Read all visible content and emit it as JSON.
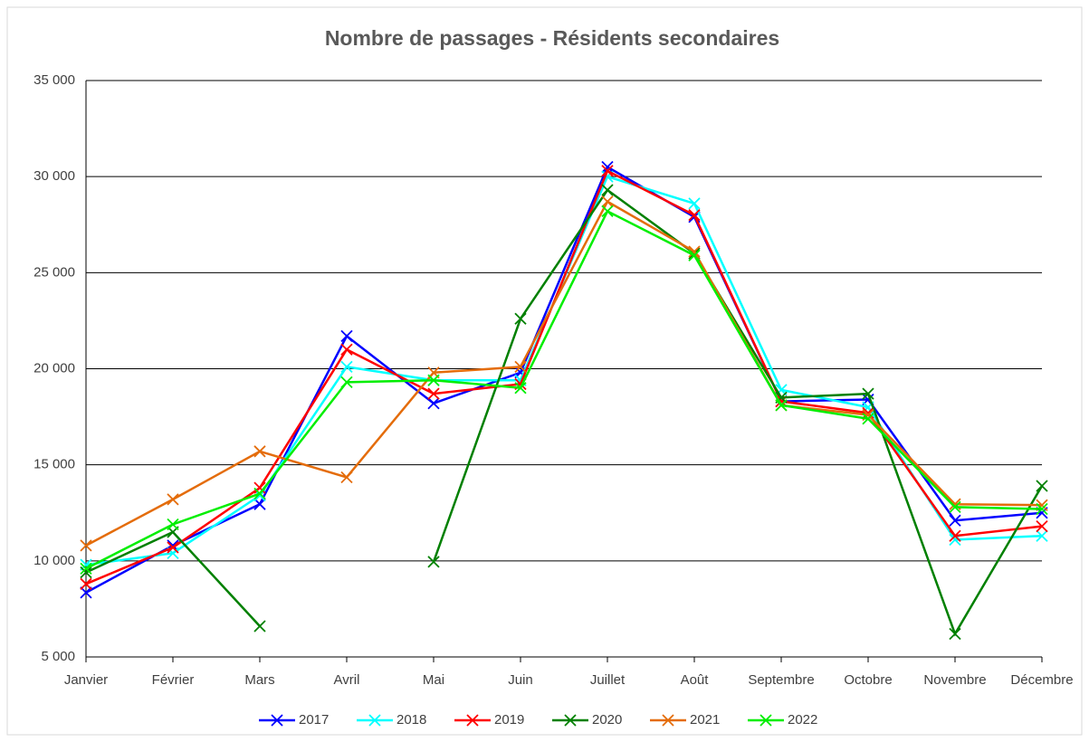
{
  "chart_data": {
    "type": "line",
    "title": "Nombre de passages  - Résidents secondaires",
    "categories": [
      "Janvier",
      "Février",
      "Mars",
      "Avril",
      "Mai",
      "Juin",
      "Juillet",
      "Août",
      "Septembre",
      "Octobre",
      "Novembre",
      "Décembre"
    ],
    "series": [
      {
        "name": "2017",
        "color": "#0000ff",
        "values": [
          8350,
          10800,
          12950,
          21700,
          18200,
          19800,
          30500,
          27900,
          18300,
          18400,
          12100,
          12500
        ]
      },
      {
        "name": "2018",
        "color": "#00ffff",
        "values": [
          9800,
          10400,
          13400,
          20100,
          19400,
          19400,
          30000,
          28600,
          18900,
          18000,
          11100,
          11300
        ]
      },
      {
        "name": "2019",
        "color": "#ff0000",
        "values": [
          8800,
          10700,
          13800,
          21000,
          18700,
          19200,
          30300,
          28000,
          18300,
          17700,
          11300,
          11800
        ]
      },
      {
        "name": "2020",
        "color": "#008000",
        "values": [
          9400,
          11500,
          6600,
          null,
          9950,
          22600,
          29300,
          26000,
          18500,
          18700,
          6200,
          13900
        ]
      },
      {
        "name": "2021",
        "color": "#e46c0a",
        "values": [
          10800,
          13200,
          15700,
          14350,
          19800,
          20100,
          28700,
          26100,
          18100,
          17600,
          12950,
          12900
        ]
      },
      {
        "name": "2022",
        "color": "#00ee00",
        "values": [
          9600,
          11900,
          13500,
          19300,
          19400,
          19000,
          28200,
          25900,
          18100,
          17400,
          12800,
          12700
        ]
      }
    ],
    "ylim": [
      5000,
      35000
    ],
    "yticks": [
      {
        "value": 5000,
        "label": "5 000"
      },
      {
        "value": 10000,
        "label": "10 000"
      },
      {
        "value": 15000,
        "label": "15 000"
      },
      {
        "value": 20000,
        "label": "20 000"
      },
      {
        "value": 25000,
        "label": "25 000"
      },
      {
        "value": 30000,
        "label": "30 000"
      },
      {
        "value": 35000,
        "label": "35 000"
      }
    ],
    "grid": true,
    "legend": "bottom"
  }
}
